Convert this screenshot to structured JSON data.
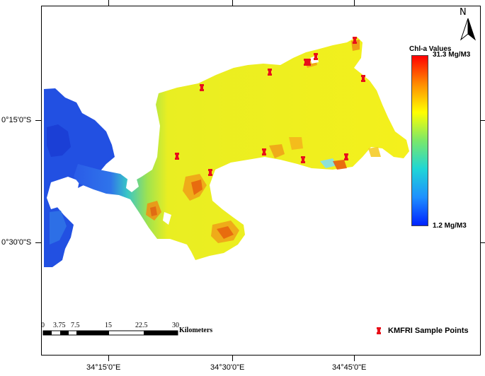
{
  "map": {
    "legend_title": "Chl-a Values",
    "legend_max": "31.3 Mg/M3",
    "legend_min": "1.2 Mg/M3",
    "color_ramp": [
      "#ff0000",
      "#ff8c00",
      "#ffff00",
      "#7ae86a",
      "#1fd6d6",
      "#1e90ff",
      "#0022ff"
    ],
    "north_letter": "N",
    "y_axis_labels": [
      "0°15'0\"S",
      "0°30'0\"S"
    ],
    "x_axis_labels": [
      "34°15'0\"E",
      "34°30'0\"E",
      "34°45'0\"E"
    ],
    "scale_bar": {
      "ticks": [
        "0",
        "3.75",
        "7.5",
        "15",
        "22.5",
        "30"
      ],
      "unit": "Kilometers"
    },
    "sample_points_label": "KMFRI Sample Points",
    "sample_points": [
      {
        "id": "sp1"
      },
      {
        "id": "sp2"
      },
      {
        "id": "sp3"
      },
      {
        "id": "sp4"
      },
      {
        "id": "sp5"
      },
      {
        "id": "sp6"
      },
      {
        "id": "sp7"
      },
      {
        "id": "sp8"
      },
      {
        "id": "sp9"
      },
      {
        "id": "sp10"
      },
      {
        "id": "sp11"
      },
      {
        "id": "sp12"
      }
    ],
    "colors": {
      "lake_yellow": "#f3f01a",
      "lake_deep_blue": "#1f4ce0",
      "lake_cyan": "#33c9c9",
      "hotspot_red": "#e84a0c",
      "marker_red": "#e8101a"
    }
  }
}
